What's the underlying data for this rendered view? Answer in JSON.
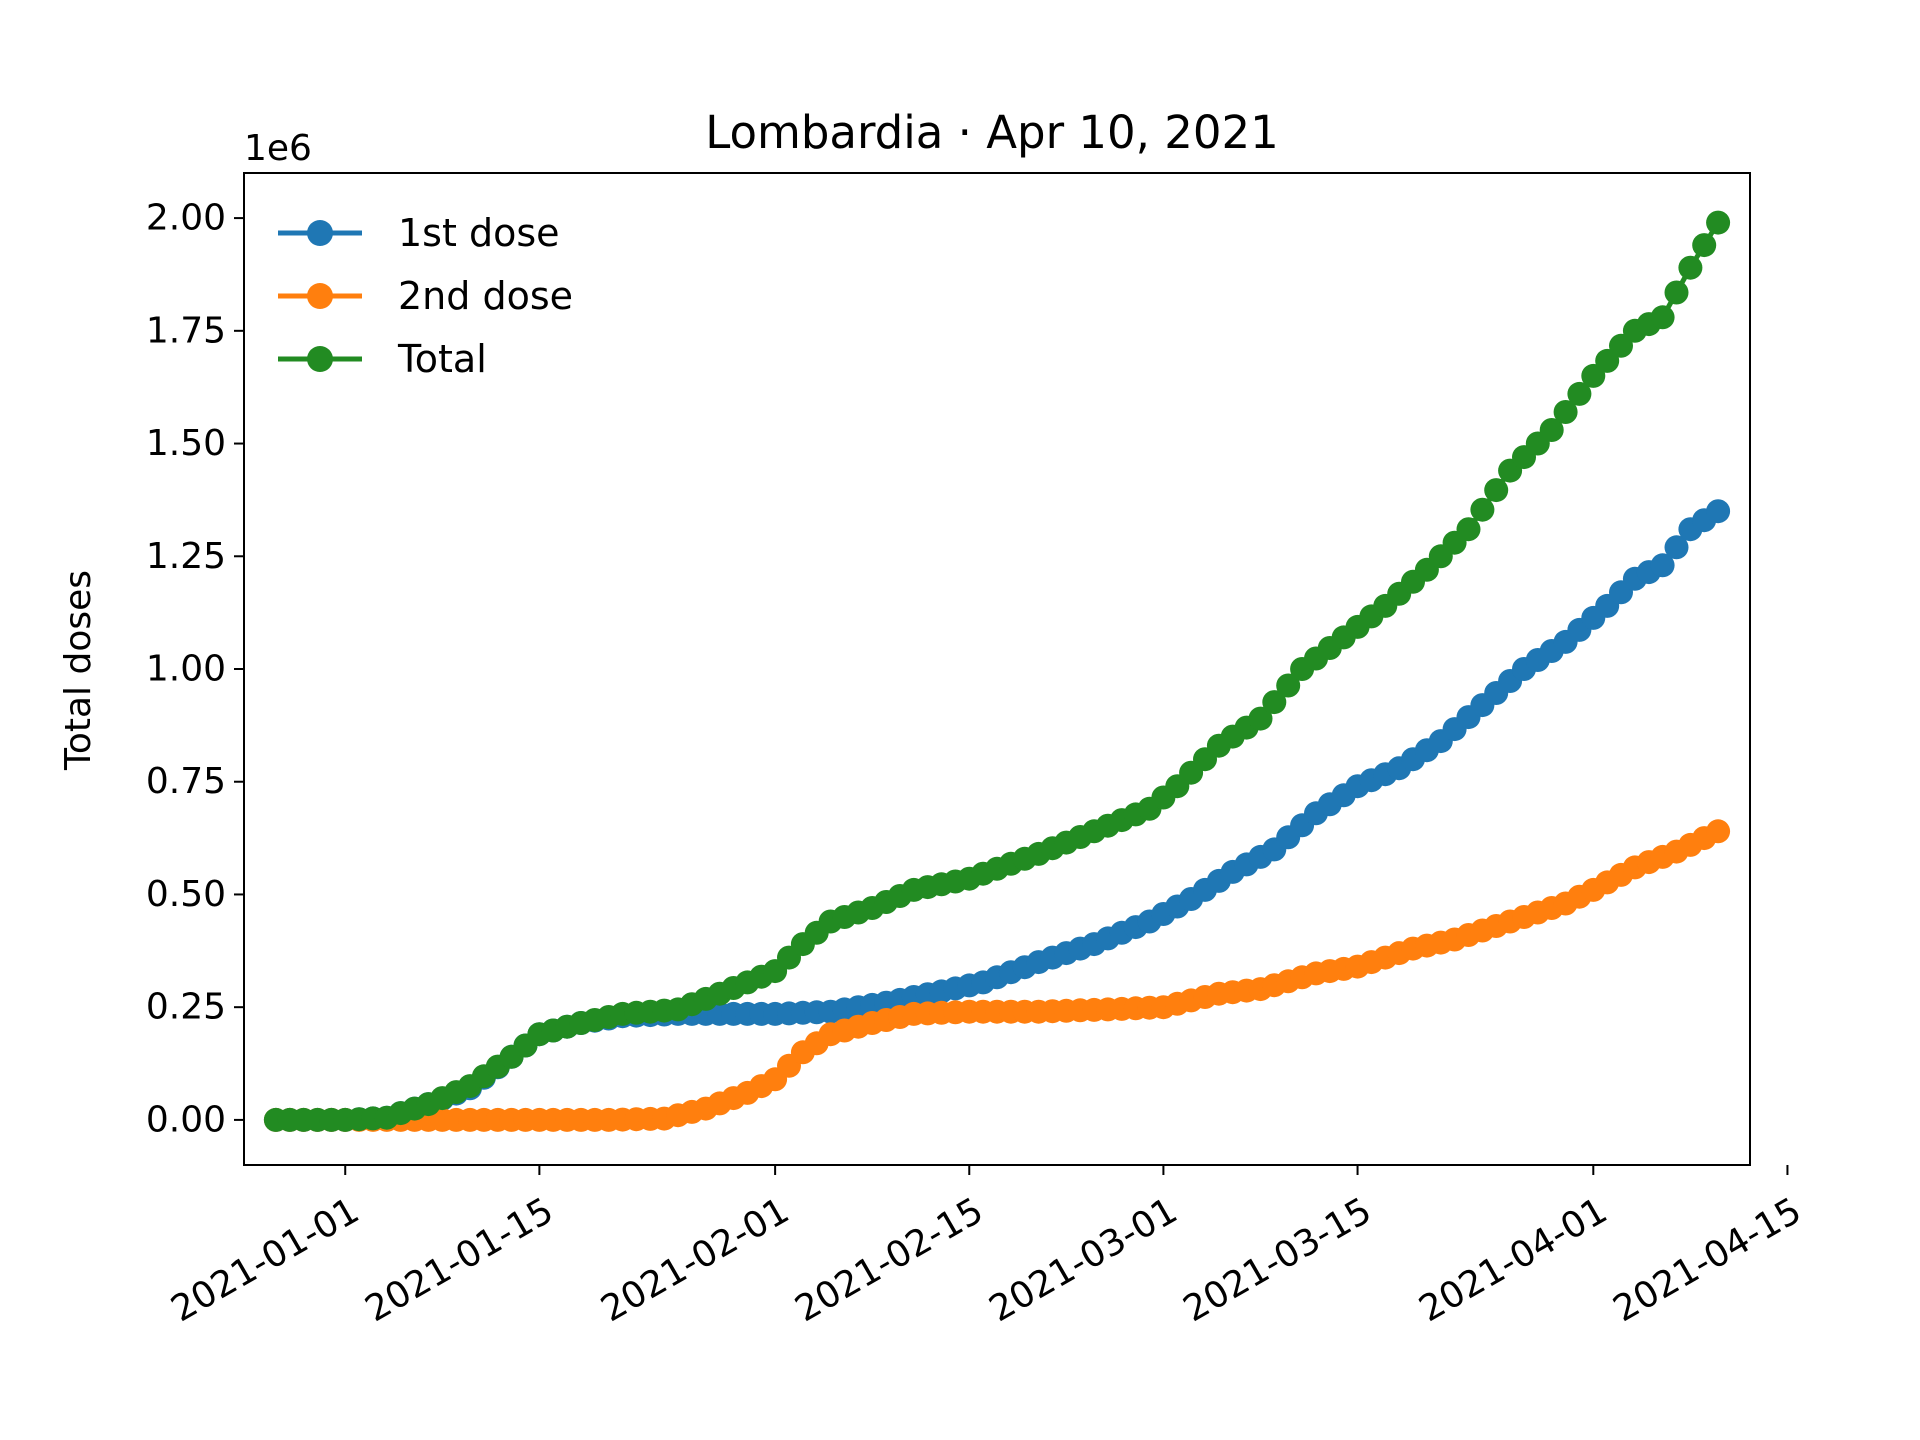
{
  "chart_data": {
    "type": "line",
    "title": "Lombardia · Apr 10, 2021",
    "xlabel": "",
    "ylabel": "Total doses",
    "y_offset_label": "1e6",
    "x_domain": [
      "2020-12-27",
      "2021-04-10"
    ],
    "ylim": [
      -0.1,
      2.1
    ],
    "x_ticks": [
      "2021-01-01",
      "2021-01-15",
      "2021-02-01",
      "2021-02-15",
      "2021-03-01",
      "2021-03-15",
      "2021-04-01",
      "2021-04-15"
    ],
    "y_ticks": [
      "0.00",
      "0.25",
      "0.50",
      "0.75",
      "1.00",
      "1.25",
      "1.50",
      "1.75",
      "2.00"
    ],
    "legend_position": "top-left",
    "grid": false,
    "series": [
      {
        "name": "1st dose",
        "color": "#1f77b4",
        "points": [
          [
            "2020-12-27",
            0.0
          ],
          [
            "2021-01-01",
            0.0
          ],
          [
            "2021-01-04",
            0.005
          ],
          [
            "2021-01-07",
            0.035
          ],
          [
            "2021-01-10",
            0.07
          ],
          [
            "2021-01-13",
            0.14
          ],
          [
            "2021-01-15",
            0.19
          ],
          [
            "2021-01-18",
            0.215
          ],
          [
            "2021-01-21",
            0.23
          ],
          [
            "2021-01-25",
            0.235
          ],
          [
            "2021-01-28",
            0.235
          ],
          [
            "2021-02-01",
            0.235
          ],
          [
            "2021-02-05",
            0.24
          ],
          [
            "2021-02-09",
            0.26
          ],
          [
            "2021-02-13",
            0.285
          ],
          [
            "2021-02-16",
            0.305
          ],
          [
            "2021-02-20",
            0.35
          ],
          [
            "2021-02-24",
            0.39
          ],
          [
            "2021-02-28",
            0.44
          ],
          [
            "2021-03-03",
            0.49
          ],
          [
            "2021-03-06",
            0.55
          ],
          [
            "2021-03-09",
            0.6
          ],
          [
            "2021-03-12",
            0.68
          ],
          [
            "2021-03-15",
            0.74
          ],
          [
            "2021-03-18",
            0.78
          ],
          [
            "2021-03-21",
            0.84
          ],
          [
            "2021-03-24",
            0.92
          ],
          [
            "2021-03-27",
            1.0
          ],
          [
            "2021-03-30",
            1.06
          ],
          [
            "2021-04-02",
            1.14
          ],
          [
            "2021-04-04",
            1.2
          ],
          [
            "2021-04-06",
            1.23
          ],
          [
            "2021-04-08",
            1.31
          ],
          [
            "2021-04-10",
            1.35
          ]
        ]
      },
      {
        "name": "2nd dose",
        "color": "#ff7f0e",
        "points": [
          [
            "2020-12-27",
            0.0
          ],
          [
            "2021-01-01",
            0.0
          ],
          [
            "2021-01-05",
            0.0
          ],
          [
            "2021-01-10",
            0.0
          ],
          [
            "2021-01-15",
            0.0
          ],
          [
            "2021-01-20",
            0.0
          ],
          [
            "2021-01-24",
            0.003
          ],
          [
            "2021-01-27",
            0.025
          ],
          [
            "2021-01-30",
            0.06
          ],
          [
            "2021-02-01",
            0.09
          ],
          [
            "2021-02-03",
            0.15
          ],
          [
            "2021-02-05",
            0.19
          ],
          [
            "2021-02-08",
            0.215
          ],
          [
            "2021-02-11",
            0.235
          ],
          [
            "2021-02-15",
            0.24
          ],
          [
            "2021-02-20",
            0.24
          ],
          [
            "2021-02-25",
            0.245
          ],
          [
            "2021-03-01",
            0.25
          ],
          [
            "2021-03-05",
            0.28
          ],
          [
            "2021-03-08",
            0.29
          ],
          [
            "2021-03-12",
            0.325
          ],
          [
            "2021-03-15",
            0.34
          ],
          [
            "2021-03-19",
            0.38
          ],
          [
            "2021-03-22",
            0.4
          ],
          [
            "2021-03-26",
            0.44
          ],
          [
            "2021-03-30",
            0.48
          ],
          [
            "2021-04-01",
            0.51
          ],
          [
            "2021-04-04",
            0.56
          ],
          [
            "2021-04-07",
            0.595
          ],
          [
            "2021-04-10",
            0.64
          ]
        ]
      },
      {
        "name": "Total",
        "color": "#228b22",
        "points": [
          [
            "2020-12-27",
            0.0
          ],
          [
            "2021-01-01",
            0.0
          ],
          [
            "2021-01-04",
            0.005
          ],
          [
            "2021-01-07",
            0.035
          ],
          [
            "2021-01-10",
            0.075
          ],
          [
            "2021-01-13",
            0.14
          ],
          [
            "2021-01-15",
            0.19
          ],
          [
            "2021-01-18",
            0.215
          ],
          [
            "2021-01-21",
            0.235
          ],
          [
            "2021-01-25",
            0.245
          ],
          [
            "2021-01-28",
            0.28
          ],
          [
            "2021-02-01",
            0.33
          ],
          [
            "2021-02-03",
            0.39
          ],
          [
            "2021-02-05",
            0.44
          ],
          [
            "2021-02-08",
            0.47
          ],
          [
            "2021-02-11",
            0.51
          ],
          [
            "2021-02-15",
            0.535
          ],
          [
            "2021-02-20",
            0.59
          ],
          [
            "2021-02-24",
            0.64
          ],
          [
            "2021-02-28",
            0.69
          ],
          [
            "2021-03-02",
            0.74
          ],
          [
            "2021-03-05",
            0.83
          ],
          [
            "2021-03-08",
            0.89
          ],
          [
            "2021-03-11",
            1.0
          ],
          [
            "2021-03-14",
            1.07
          ],
          [
            "2021-03-17",
            1.14
          ],
          [
            "2021-03-20",
            1.22
          ],
          [
            "2021-03-23",
            1.31
          ],
          [
            "2021-03-26",
            1.44
          ],
          [
            "2021-03-29",
            1.53
          ],
          [
            "2021-04-01",
            1.65
          ],
          [
            "2021-04-04",
            1.75
          ],
          [
            "2021-04-06",
            1.78
          ],
          [
            "2021-04-08",
            1.89
          ],
          [
            "2021-04-10",
            1.99
          ]
        ]
      }
    ]
  }
}
